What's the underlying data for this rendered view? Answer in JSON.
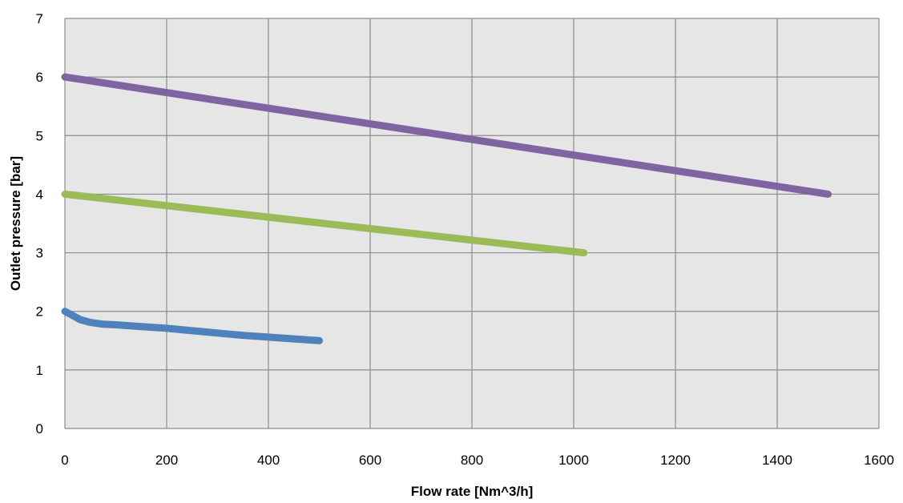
{
  "chart_data": {
    "type": "line",
    "title": "",
    "xlabel": "Flow rate [Nm^3/h]",
    "ylabel": "Outlet pressure [bar]",
    "xlim": [
      0,
      1600
    ],
    "ylim": [
      0,
      7
    ],
    "x_ticks": [
      0,
      200,
      400,
      600,
      800,
      1000,
      1200,
      1400,
      1600
    ],
    "y_ticks": [
      0,
      1,
      2,
      3,
      4,
      5,
      6,
      7
    ],
    "x_tick_labels": [
      "0",
      "200",
      "400",
      "600",
      "800",
      "1000",
      "1200",
      "1400",
      "1600"
    ],
    "y_tick_labels": [
      "0",
      "1",
      "2",
      "3",
      "4",
      "5",
      "6",
      "7"
    ],
    "grid": true,
    "legend": "none",
    "plot_background": "#e6e6e6",
    "grid_color": "#8c8c8c",
    "series": [
      {
        "color": "#4f81bd",
        "x": [
          0,
          15,
          30,
          50,
          75,
          100,
          150,
          200,
          250,
          300,
          350,
          400,
          450,
          500
        ],
        "y": [
          2.0,
          1.93,
          1.86,
          1.81,
          1.78,
          1.77,
          1.74,
          1.71,
          1.67,
          1.63,
          1.59,
          1.56,
          1.53,
          1.5
        ]
      },
      {
        "color": "#9bbb59",
        "x": [
          0,
          1020
        ],
        "y": [
          4.0,
          3.0
        ]
      },
      {
        "color": "#8064a2",
        "x": [
          0,
          1500
        ],
        "y": [
          6.0,
          4.0
        ]
      }
    ]
  }
}
